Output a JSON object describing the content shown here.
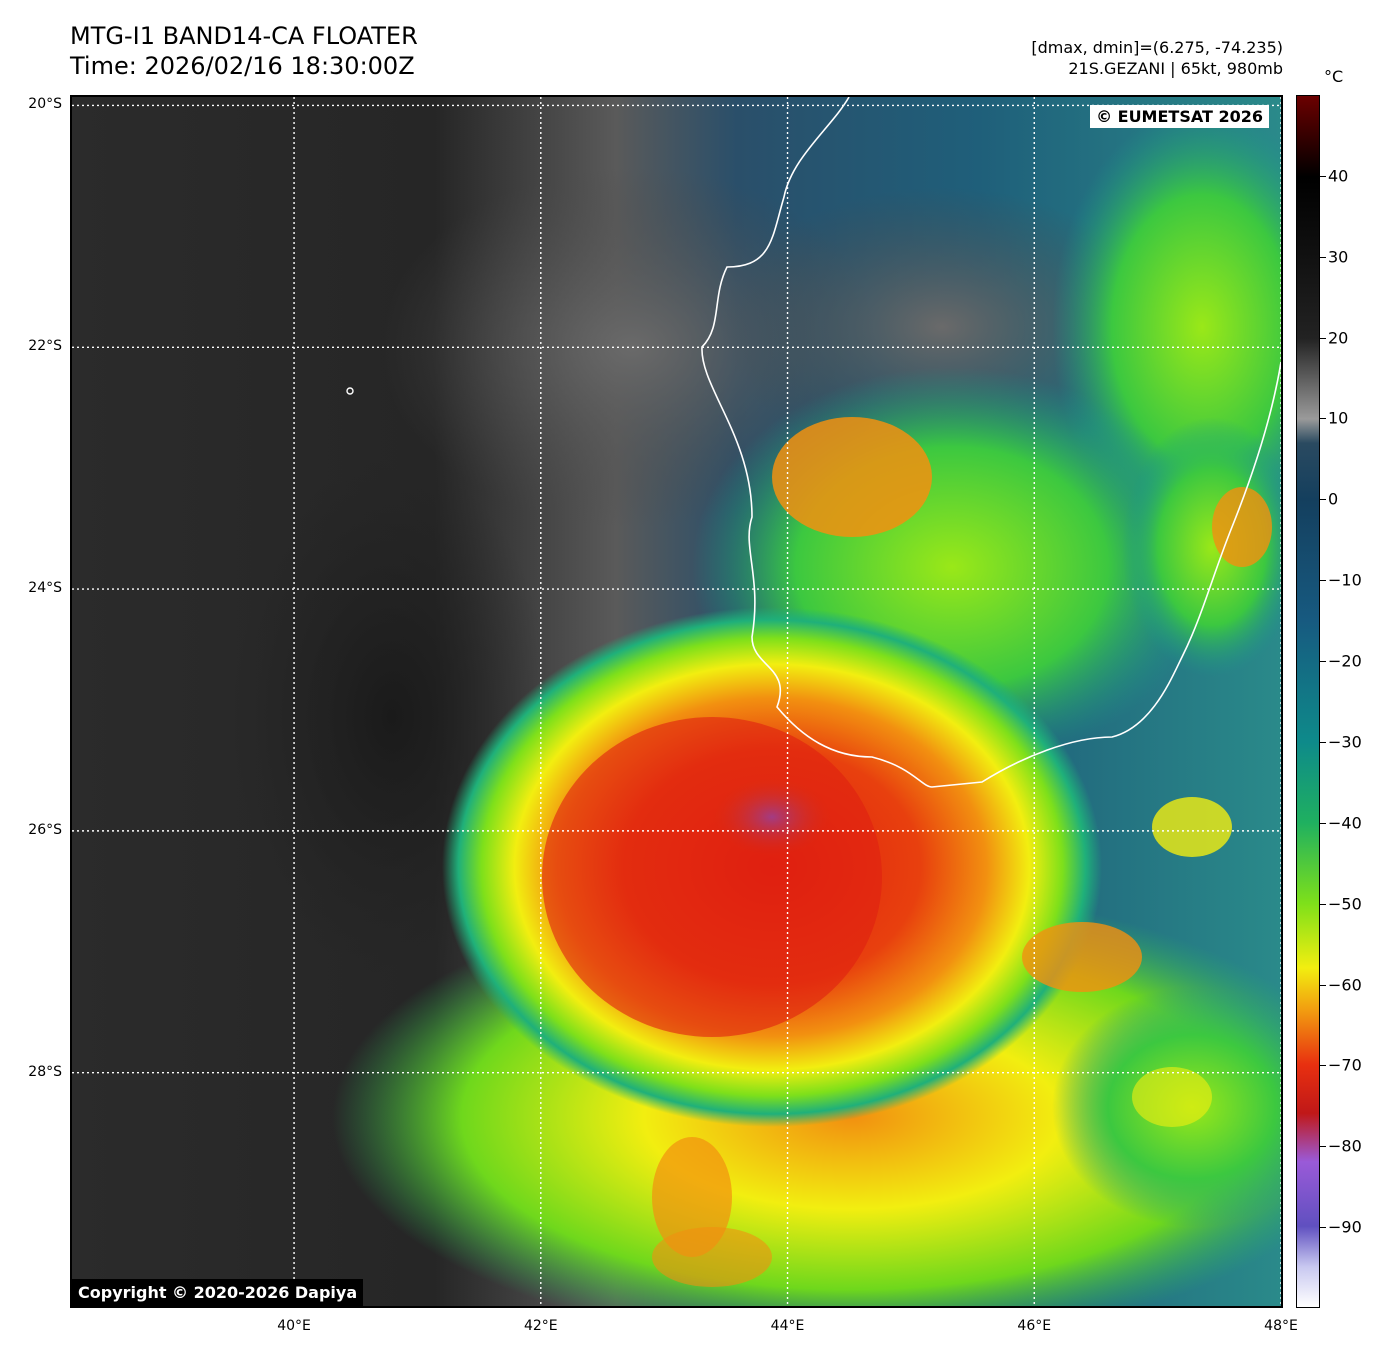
{
  "header": {
    "title_line1": "MTG-I1 BAND14-CA FLOATER",
    "title_line2": "Time: 2026/02/16 18:30:00Z",
    "meta_line1": "[dmax, dmin]=(6.275, -74.235)",
    "meta_line2": "21S.GEZANI | 65kt, 980mb"
  },
  "map": {
    "extent": {
      "lon_min": 38.2,
      "lon_max": 48.0,
      "lat_max": -19.93,
      "lat_min": -29.93
    },
    "lat_labels": [
      {
        "value": -20,
        "text": "20°S"
      },
      {
        "value": -22,
        "text": "22°S"
      },
      {
        "value": -24,
        "text": "24°S"
      },
      {
        "value": -26,
        "text": "26°S"
      },
      {
        "value": -28,
        "text": "28°S"
      }
    ],
    "lon_labels": [
      {
        "value": 40,
        "text": "40°E"
      },
      {
        "value": 42,
        "text": "42°E"
      },
      {
        "value": 44,
        "text": "44°E"
      },
      {
        "value": 46,
        "text": "46°E"
      },
      {
        "value": 48,
        "text": "48°E"
      }
    ],
    "eumetsat_label": "© EUMETSAT 2026",
    "copyright_label": "Copyright © 2020-2026 Dapiya"
  },
  "colorbar": {
    "unit": "°C",
    "range": [
      -100,
      50
    ],
    "ticks": [
      40,
      30,
      20,
      10,
      0,
      -10,
      -20,
      -30,
      -40,
      -50,
      -60,
      -70,
      -80,
      -90
    ],
    "tick_labels": [
      "40",
      "30",
      "20",
      "10",
      "0",
      "−10",
      "−20",
      "−30",
      "−40",
      "−50",
      "−60",
      "−70",
      "−80",
      "−90"
    ]
  },
  "colors": {
    "warm_top": "#6b0000",
    "gray_mid": "#8a8a8a",
    "ocean_blue": "#174a6e",
    "teal": "#0e8a8a",
    "green": "#2ec43a",
    "yellow": "#f2ee10",
    "orange": "#f29010",
    "red": "#e02010",
    "purple": "#7a4ad0",
    "coast": "#ffffff"
  }
}
